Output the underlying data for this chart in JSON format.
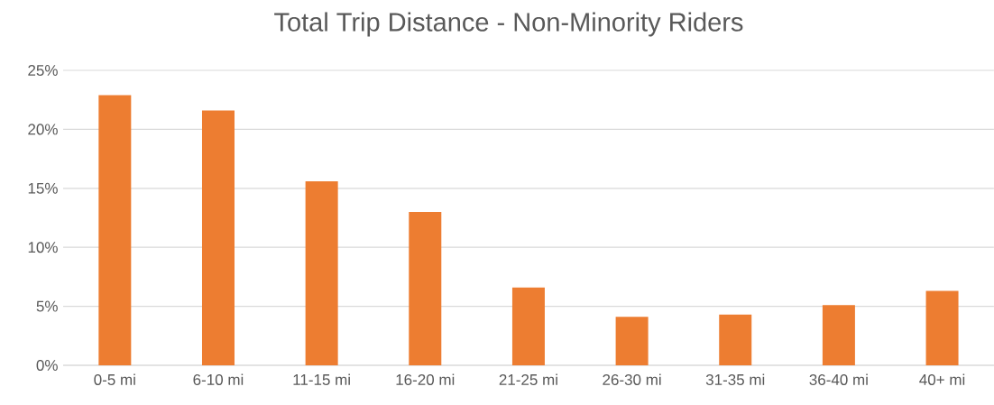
{
  "chart_data": {
    "type": "bar",
    "title": "Total Trip Distance - Non-Minority Riders",
    "categories": [
      "0-5 mi",
      "6-10 mi",
      "11-15 mi",
      "16-20 mi",
      "21-25 mi",
      "26-30 mi",
      "31-35 mi",
      "36-40 mi",
      "40+ mi"
    ],
    "values": [
      22.9,
      21.6,
      15.6,
      13.0,
      6.6,
      4.1,
      4.3,
      5.1,
      6.3
    ],
    "color": "#ed7d31",
    "ylim": [
      0,
      25
    ],
    "yticks": [
      {
        "value": 0,
        "label": "0%"
      },
      {
        "value": 5,
        "label": "5%"
      },
      {
        "value": 10,
        "label": "10%"
      },
      {
        "value": 15,
        "label": "15%"
      },
      {
        "value": 20,
        "label": "20%"
      },
      {
        "value": 25,
        "label": "25%"
      }
    ],
    "grid": "y"
  }
}
